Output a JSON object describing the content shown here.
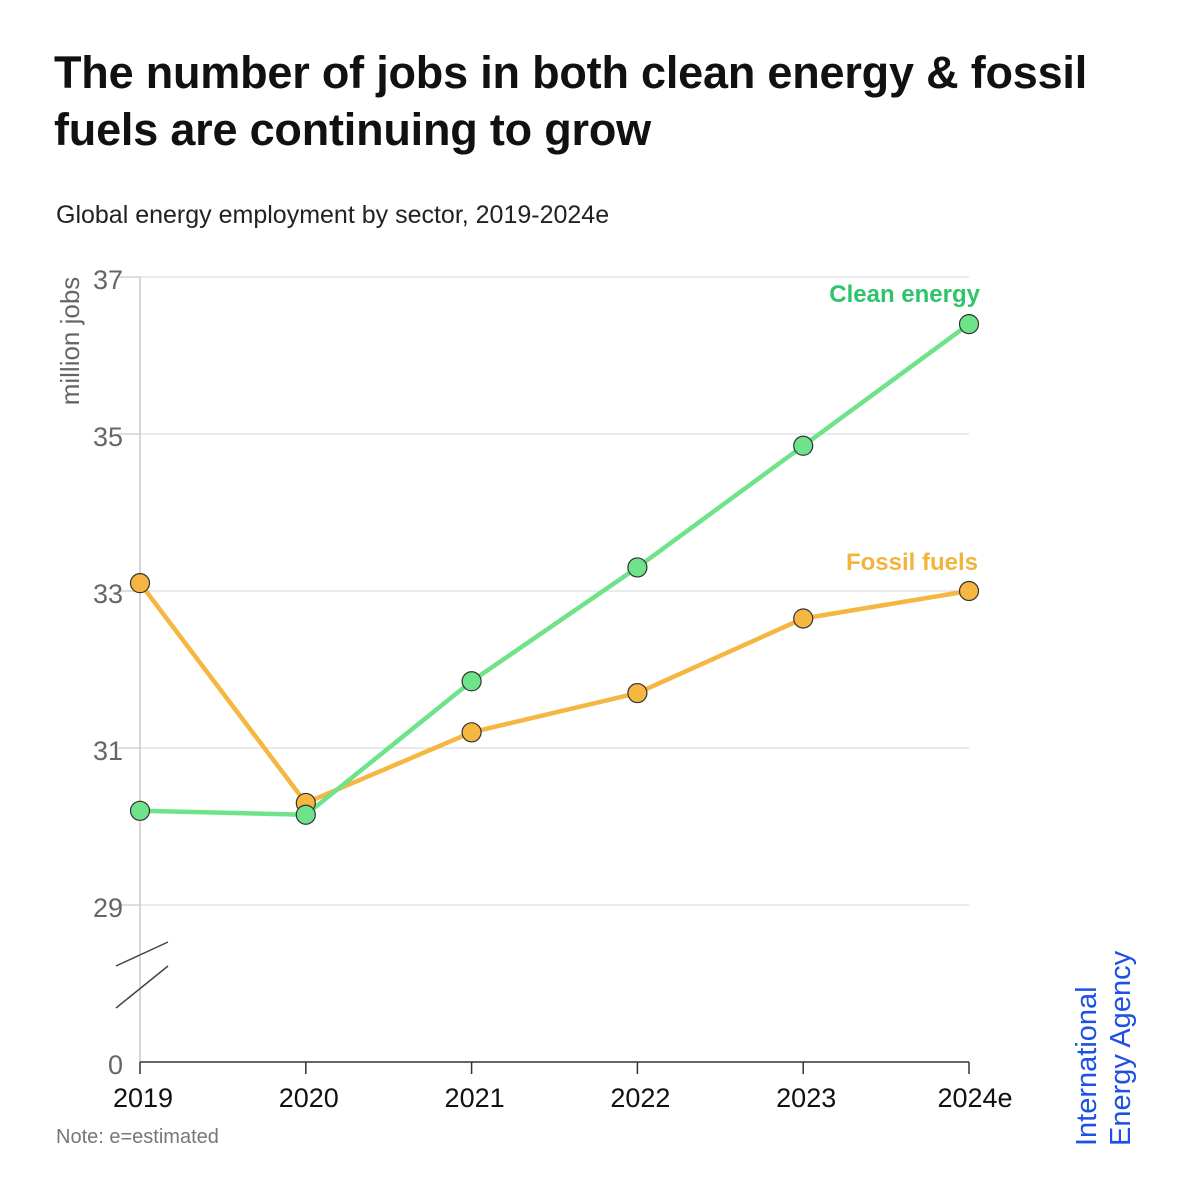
{
  "title": "The number of jobs in both clean energy & fossil fuels are continuing to grow",
  "subtitle": "Global energy employment by sector, 2019-2024e",
  "note": "Note: e=estimated",
  "logo": {
    "line1": "International",
    "line2": "Energy Agency"
  },
  "colors": {
    "clean_energy": "#6ee38a",
    "clean_energy_label": "#2ec46a",
    "fossil_fuels": "#f5b642",
    "fossil_fuels_label": "#f2b43c",
    "logo": "#1e50e6"
  },
  "chart_data": {
    "type": "line",
    "title": "The number of jobs in both clean energy & fossil fuels are continuing to grow",
    "subtitle": "Global energy employment by sector, 2019-2024e",
    "xlabel": "",
    "ylabel": "million jobs",
    "categories": [
      "2019",
      "2020",
      "2021",
      "2022",
      "2023",
      "2024e"
    ],
    "yticks": [
      0,
      29,
      31,
      33,
      35,
      37
    ],
    "ylim": [
      29,
      37
    ],
    "axis_break": "between 0 and 29",
    "grid": true,
    "legend": "direct labels at line ends",
    "series": [
      {
        "name": "Clean energy",
        "values": [
          30.2,
          30.15,
          31.85,
          33.3,
          34.85,
          36.4
        ]
      },
      {
        "name": "Fossil fuels",
        "values": [
          33.1,
          30.3,
          31.2,
          31.7,
          32.65,
          33.0
        ]
      }
    ],
    "note": "Note: e=estimated"
  }
}
